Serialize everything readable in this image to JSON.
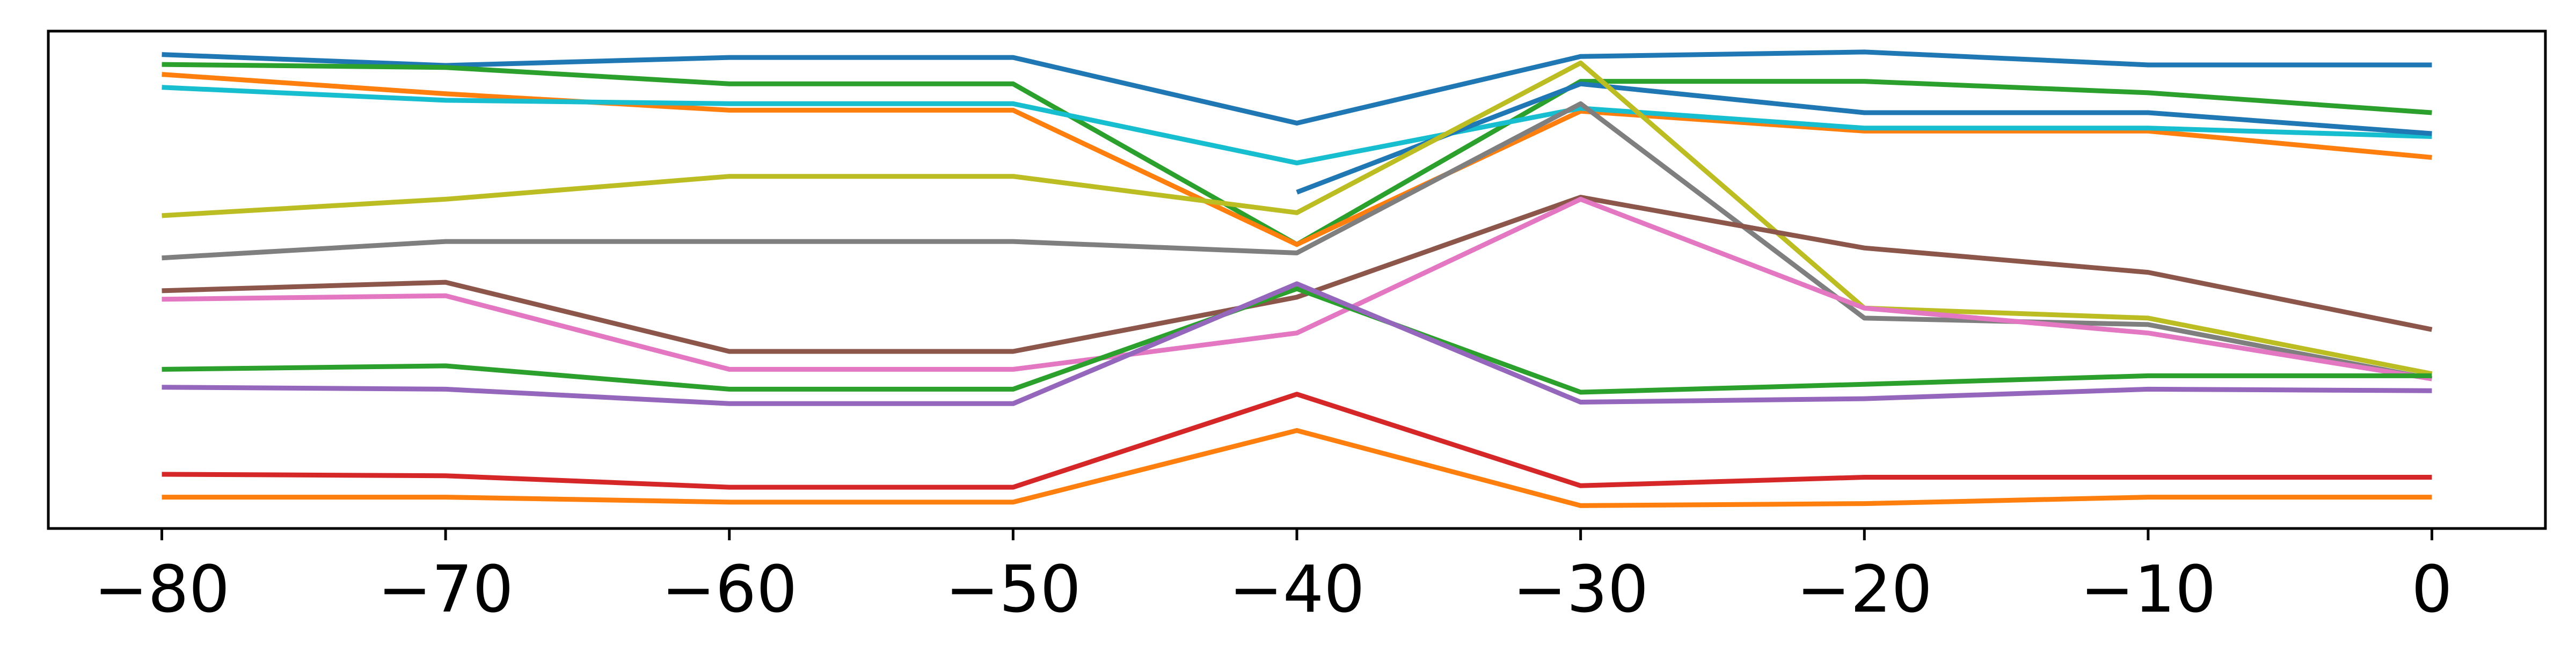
{
  "chart_data": {
    "type": "line",
    "title": "",
    "xlabel": "",
    "ylabel": "",
    "x": [
      -80,
      -70,
      -60,
      -50,
      -40,
      -30,
      -20,
      -10,
      0
    ],
    "x_tick_labels": [
      "−80",
      "−70",
      "−60",
      "−50",
      "−40",
      "−30",
      "−20",
      "−10",
      "0"
    ],
    "xlim": [
      -84,
      4
    ],
    "ylim": [
      0,
      100
    ],
    "y_ticks_shown": false,
    "grid": false,
    "legend": "none",
    "series": [
      {
        "color": "#1f77b4",
        "values": [
          95.3,
          93.1,
          94.7,
          94.7,
          81.5,
          94.9,
          95.8,
          93.2,
          93.2
        ]
      },
      {
        "color": "#2ca02c",
        "values": [
          93.3,
          92.7,
          89.4,
          89.4,
          57.1,
          89.9,
          89.9,
          87.6,
          83.6
        ]
      },
      {
        "color": "#ff7f0e",
        "values": [
          91.3,
          87.4,
          84.1,
          84.1,
          57.1,
          83.9,
          79.9,
          79.9,
          74.6
        ]
      },
      {
        "color": "#17becf",
        "values": [
          88.7,
          86.1,
          85.4,
          85.4,
          73.5,
          84.5,
          80.5,
          80.5,
          78.8
        ]
      },
      {
        "color": "#1f77b4",
        "values": [
          null,
          null,
          null,
          null,
          67.6,
          89.4,
          83.6,
          83.6,
          79.4
        ]
      },
      {
        "color": "#bcbd22",
        "values": [
          62.9,
          66.2,
          70.8,
          70.8,
          63.5,
          93.6,
          44.3,
          42.3,
          31.1
        ]
      },
      {
        "color": "#7f7f7f",
        "values": [
          54.4,
          57.7,
          57.7,
          57.7,
          55.4,
          85.4,
          42.3,
          41.0,
          30.1
        ]
      },
      {
        "color": "#8c564b",
        "values": [
          47.8,
          49.5,
          35.6,
          35.6,
          46.5,
          66.6,
          56.4,
          51.5,
          40.0
        ]
      },
      {
        "color": "#e377c2",
        "values": [
          46.1,
          46.8,
          32.0,
          32.0,
          39.3,
          66.2,
          44.3,
          39.3,
          30.1
        ]
      },
      {
        "color": "#2ca02c",
        "values": [
          32.0,
          32.7,
          28.0,
          28.0,
          48.2,
          27.4,
          29.0,
          30.7,
          30.7
        ]
      },
      {
        "color": "#9467bd",
        "values": [
          28.4,
          28.0,
          25.1,
          25.1,
          49.2,
          25.4,
          26.1,
          28.0,
          27.7
        ]
      },
      {
        "color": "#d62728",
        "values": [
          10.9,
          10.6,
          8.3,
          8.3,
          27.0,
          8.6,
          10.3,
          10.3,
          10.3
        ]
      },
      {
        "color": "#ff7f0e",
        "values": [
          6.3,
          6.3,
          5.3,
          5.3,
          19.7,
          4.6,
          5.0,
          6.3,
          6.3
        ]
      }
    ]
  }
}
